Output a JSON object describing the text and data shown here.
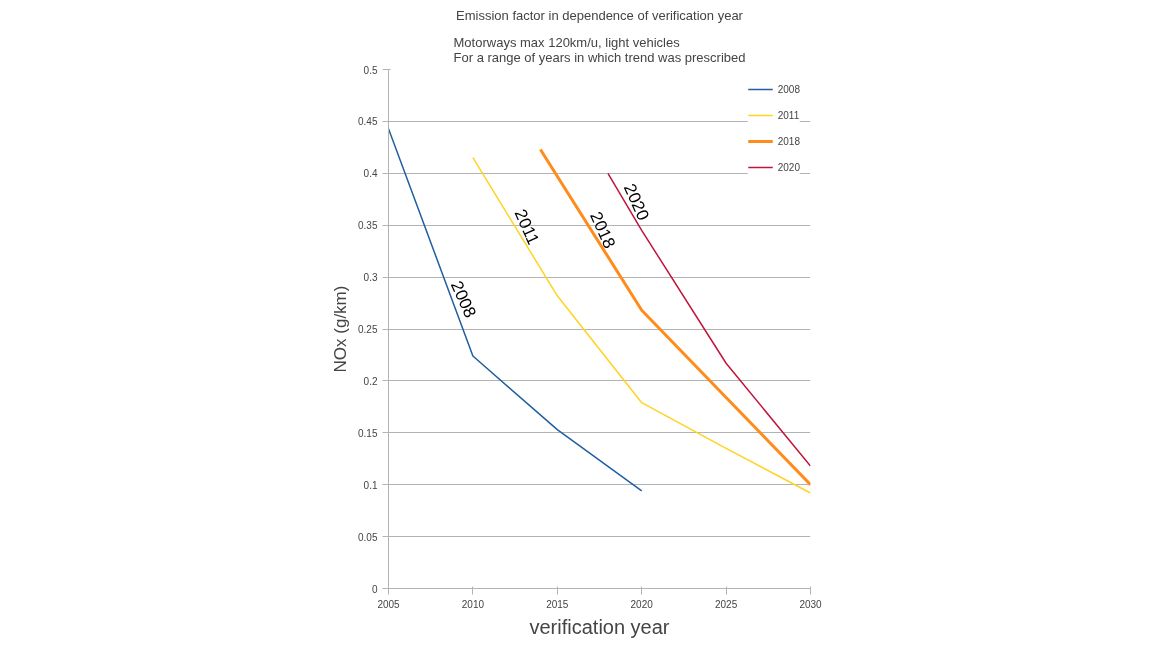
{
  "chart_data": {
    "type": "line",
    "title": "Emission factor in dependence of verification year",
    "subtitle": "Motorways max 120km/u, light vehicles\nFor a range of years in which trend was prescribed",
    "xlabel": "verification year",
    "ylabel": "NOx (g/km)",
    "series": [
      {
        "name": "2008",
        "color": "#1f5f9f",
        "x": [
          2005,
          2010,
          2015,
          2020
        ],
        "values": [
          0.443,
          0.224,
          0.153,
          0.094
        ]
      },
      {
        "name": "2011",
        "color": "#ffd320",
        "x": [
          2010,
          2015,
          2020,
          2025,
          2030
        ],
        "values": [
          0.415,
          0.282,
          0.179,
          0.135,
          0.092
        ]
      },
      {
        "name": "2018",
        "color": "#ff8c1a",
        "x": [
          2014,
          2020,
          2025,
          2030
        ],
        "values": [
          0.423,
          0.268,
          0.184,
          0.1
        ]
      },
      {
        "name": "2020",
        "color": "#c0143c",
        "x": [
          2018,
          2020,
          2025,
          2030
        ],
        "values": [
          0.4,
          0.345,
          0.217,
          0.118
        ]
      }
    ],
    "annotations": [
      "2008",
      "2011",
      "2018",
      "2020"
    ],
    "xlim": [
      2005,
      2030
    ],
    "xticks": [
      2005,
      2010,
      2015,
      2020,
      2025,
      2030
    ],
    "ylim": [
      0,
      0.5
    ],
    "yticks": [
      0,
      0.05,
      0.1,
      0.15,
      0.2,
      0.25,
      0.3,
      0.35,
      0.4,
      0.45,
      0.5
    ],
    "grid": "y",
    "legend": "top right",
    "marker": "none",
    "line_style": "solid"
  }
}
